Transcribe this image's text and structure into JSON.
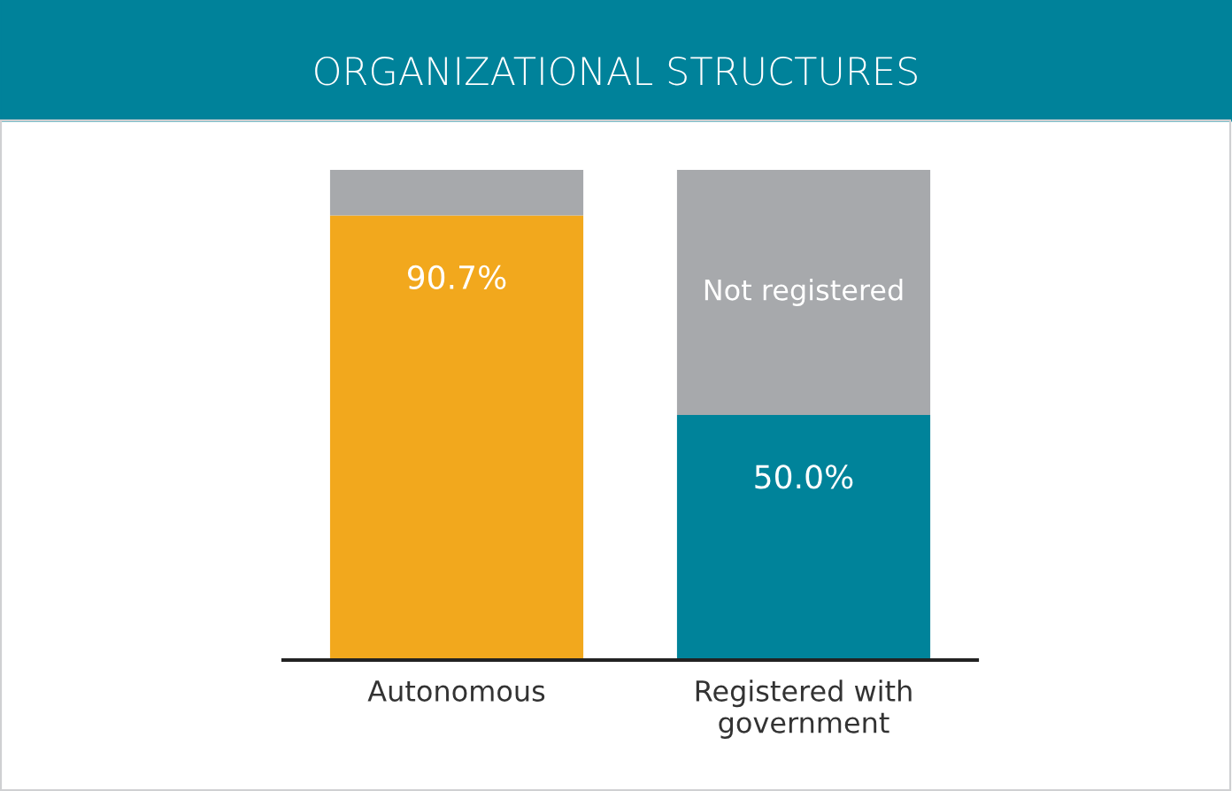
{
  "chart_data": {
    "type": "bar",
    "title": "ORGANIZATIONAL STRUCTURES",
    "stacked": true,
    "categories": [
      "Autonomous",
      "Registered with\ngovernment"
    ],
    "series": [
      {
        "colors": [
          "#f2a81d",
          "#00839a"
        ],
        "values": [
          90.7,
          50.0
        ],
        "value_labels": [
          "90.7%",
          "50.0%"
        ]
      },
      {
        "color": "#a7a9ac",
        "values": [
          9.3,
          50.0
        ]
      }
    ],
    "annotations": [
      "Not registered"
    ],
    "grid": false,
    "legend": false
  }
}
